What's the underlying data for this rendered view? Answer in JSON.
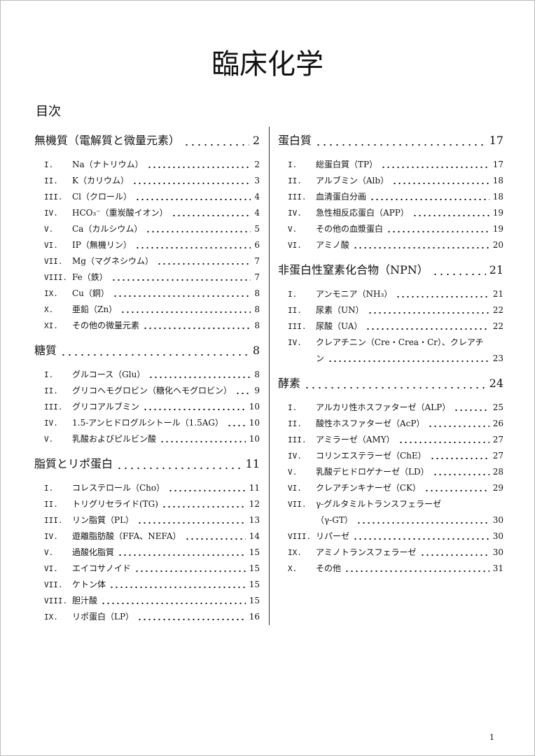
{
  "title": "臨床化学",
  "toc_heading": "目次",
  "columns": [
    {
      "sections": [
        {
          "title": "無機質（電解質と微量元素）",
          "page": 2,
          "items": [
            {
              "number": "I.",
              "lines": [
                "Na（ナトリウム）"
              ],
              "page": 2
            },
            {
              "number": "II.",
              "lines": [
                "K（カリウム）"
              ],
              "page": 3
            },
            {
              "number": "III.",
              "lines": [
                "Cl（クロール）"
              ],
              "page": 4
            },
            {
              "number": "IV.",
              "lines": [
                "HCO₃⁻（重炭酸イオン）"
              ],
              "page": 4
            },
            {
              "number": "V.",
              "lines": [
                "Ca（カルシウム）"
              ],
              "page": 5
            },
            {
              "number": "VI.",
              "lines": [
                "IP（無機リン）"
              ],
              "page": 6
            },
            {
              "number": "VII.",
              "lines": [
                "Mg（マグネシウム）"
              ],
              "page": 7
            },
            {
              "number": "VIII.",
              "lines": [
                "Fe（鉄）"
              ],
              "page": 7
            },
            {
              "number": "IX.",
              "lines": [
                "Cu（銅）"
              ],
              "page": 8
            },
            {
              "number": "X.",
              "lines": [
                "亜鉛（Zn）"
              ],
              "page": 8
            },
            {
              "number": "XI.",
              "lines": [
                "その他の微量元素"
              ],
              "page": 8
            }
          ]
        },
        {
          "title": "糖質",
          "page": 8,
          "items": [
            {
              "number": "I.",
              "lines": [
                "グルコース（Glu）"
              ],
              "page": 8
            },
            {
              "number": "II.",
              "lines": [
                "グリコヘモグロビン（糖化ヘモグロビン）"
              ],
              "page": 9
            },
            {
              "number": "III.",
              "lines": [
                "グリコアルブミン"
              ],
              "page": 10
            },
            {
              "number": "IV.",
              "lines": [
                "1.5-アンヒドログルシトール（1.5AG）"
              ],
              "page": 10
            },
            {
              "number": "V.",
              "lines": [
                "乳酸およびピルビン酸"
              ],
              "page": 10
            }
          ]
        },
        {
          "title": "脂質とリポ蛋白",
          "page": 11,
          "items": [
            {
              "number": "I.",
              "lines": [
                "コレステロール（Cho）"
              ],
              "page": 11
            },
            {
              "number": "II.",
              "lines": [
                "トリグリセライド(TG)"
              ],
              "page": 12
            },
            {
              "number": "III.",
              "lines": [
                "リン脂質（PL）"
              ],
              "page": 13
            },
            {
              "number": "IV.",
              "lines": [
                "遊離脂肪酸（FFA、NEFA）"
              ],
              "page": 14
            },
            {
              "number": "V.",
              "lines": [
                "過酸化脂質"
              ],
              "page": 15
            },
            {
              "number": "VI.",
              "lines": [
                "エイコサノイド"
              ],
              "page": 15
            },
            {
              "number": "VII.",
              "lines": [
                "ケトン体"
              ],
              "page": 15
            },
            {
              "number": "VIII.",
              "lines": [
                "胆汁酸"
              ],
              "page": 15
            },
            {
              "number": "IX.",
              "lines": [
                "リポ蛋白（LP）"
              ],
              "page": 16
            }
          ]
        }
      ]
    },
    {
      "sections": [
        {
          "title": "蛋白質",
          "page": 17,
          "items": [
            {
              "number": "I.",
              "lines": [
                "総蛋白質（TP）"
              ],
              "page": 17
            },
            {
              "number": "II.",
              "lines": [
                "アルブミン（Alb）"
              ],
              "page": 18
            },
            {
              "number": "III.",
              "lines": [
                "血清蛋白分画"
              ],
              "page": 18
            },
            {
              "number": "IV.",
              "lines": [
                "急性相反応蛋白（APP）"
              ],
              "page": 19
            },
            {
              "number": "V.",
              "lines": [
                "その他の血漿蛋白"
              ],
              "page": 19
            },
            {
              "number": "VI.",
              "lines": [
                "アミノ酸"
              ],
              "page": 20
            }
          ]
        },
        {
          "title": "非蛋白性窒素化合物（NPN）",
          "page": 21,
          "items": [
            {
              "number": "I.",
              "lines": [
                "アンモニア（NH₃）"
              ],
              "page": 21
            },
            {
              "number": "II.",
              "lines": [
                "尿素（UN）"
              ],
              "page": 22
            },
            {
              "number": "III.",
              "lines": [
                "尿酸（UA）"
              ],
              "page": 22
            },
            {
              "number": "IV.",
              "lines": [
                "クレアチニン（Cre・Crea・Cr）、クレアチ",
                "ン"
              ],
              "page": 23
            }
          ]
        },
        {
          "title": "酵素",
          "page": 24,
          "items": [
            {
              "number": "I.",
              "lines": [
                "アルカリ性ホスファターゼ（ALP）"
              ],
              "page": 25
            },
            {
              "number": "II.",
              "lines": [
                "酸性ホスファターゼ（AcP）"
              ],
              "page": 26
            },
            {
              "number": "III.",
              "lines": [
                "アミラーゼ（AMY）"
              ],
              "page": 27
            },
            {
              "number": "IV.",
              "lines": [
                "コリンエステラーゼ（ChE）"
              ],
              "page": 27
            },
            {
              "number": "V.",
              "lines": [
                "乳酸デヒドロゲナーゼ（LD）"
              ],
              "page": 28
            },
            {
              "number": "VI.",
              "lines": [
                "クレアチンキナーゼ（CK）"
              ],
              "page": 29
            },
            {
              "number": "VII.",
              "lines": [
                "γ-グルタミルトランスフェラーゼ",
                "（γ-GT）"
              ],
              "page": 30
            },
            {
              "number": "VIII.",
              "lines": [
                "リパーゼ"
              ],
              "page": 30
            },
            {
              "number": "IX.",
              "lines": [
                "アミノトランスフェラーゼ"
              ],
              "page": 30
            },
            {
              "number": "X.",
              "lines": [
                "その他"
              ],
              "page": 31
            }
          ]
        }
      ]
    }
  ],
  "footer_page": 1
}
